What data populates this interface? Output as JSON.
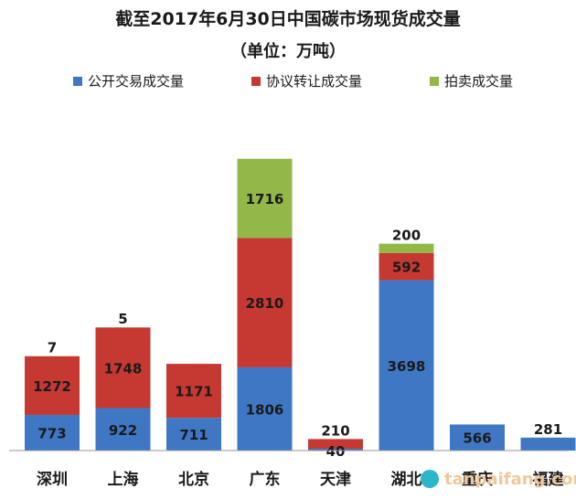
{
  "chart_data": {
    "type": "bar",
    "stacked": true,
    "title": "截至2017年6月30日中国碳市场现货成交量",
    "subtitle": "（单位：万吨）",
    "categories": [
      "深圳",
      "上海",
      "北京",
      "广东",
      "天津",
      "湖北",
      "重庆",
      "福建"
    ],
    "series": [
      {
        "name": "公开交易成交量",
        "color": "#3f77c4",
        "values": [
          773,
          922,
          711,
          1806,
          40,
          3698,
          566,
          281
        ]
      },
      {
        "name": "协议转让成交量",
        "color": "#c63832",
        "values": [
          1272,
          1748,
          1171,
          2810,
          210,
          592,
          null,
          null
        ]
      },
      {
        "name": "拍卖成交量",
        "color": "#93b847",
        "values": [
          7,
          5,
          null,
          1716,
          null,
          200,
          null,
          null
        ]
      }
    ],
    "legend_position": "top",
    "grid": false,
    "ylim": [
      0,
      7200
    ]
  },
  "watermark": {
    "text": "tanpaifang.com",
    "color": "#f08a1a"
  }
}
